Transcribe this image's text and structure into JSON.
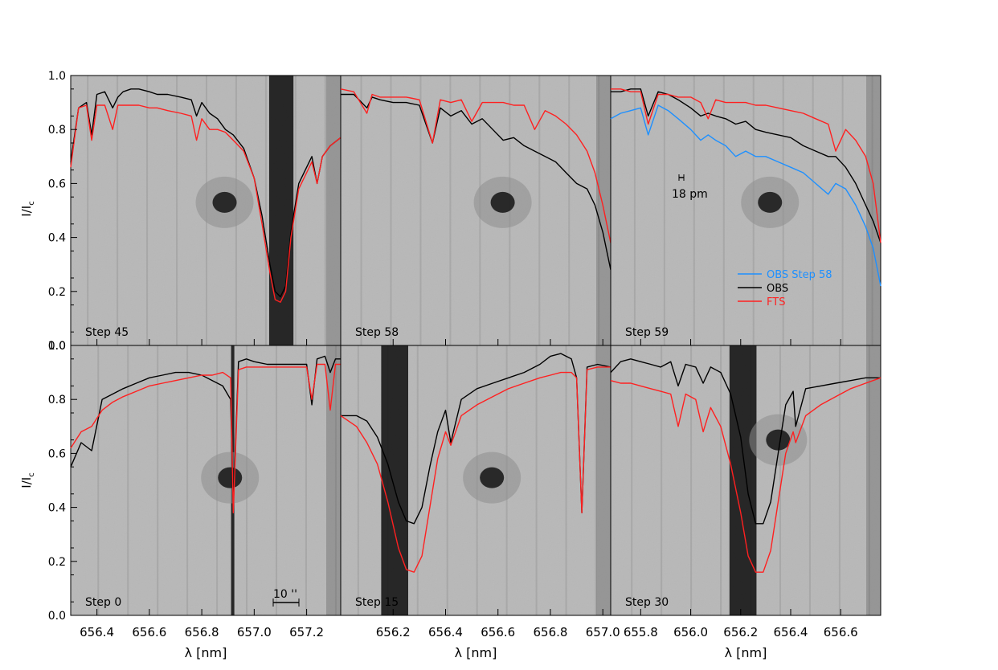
{
  "figure": {
    "ylabel": "I/I",
    "ylabel_sub": "c",
    "xlabel": "λ [nm]",
    "scalebar_label": "10 ''",
    "resolution_label": "18 pm",
    "colors": {
      "obs": "#000000",
      "fts": "#ff2020",
      "obs_alt": "#1e90ff",
      "background_image": "#b9b9b9"
    }
  },
  "chart_data": [
    {
      "type": "line",
      "panel_label": "Step 45",
      "xlim": [
        656.3,
        657.33
      ],
      "ylim": [
        0,
        1.0
      ],
      "xticks": [
        656.4,
        656.6,
        656.8,
        657.0,
        657.2
      ],
      "yticks": [
        0.0,
        0.2,
        0.4,
        0.6,
        0.8,
        1.0
      ],
      "series": [
        {
          "name": "OBS",
          "color": "#000000",
          "x": [
            656.3,
            656.33,
            656.36,
            656.38,
            656.4,
            656.43,
            656.46,
            656.48,
            656.5,
            656.53,
            656.56,
            656.6,
            656.63,
            656.67,
            656.72,
            656.76,
            656.78,
            656.8,
            656.83,
            656.86,
            656.89,
            656.92,
            656.96,
            657.0,
            657.03,
            657.06,
            657.08,
            657.1,
            657.12,
            657.14,
            657.17,
            657.2,
            657.22,
            657.24,
            657.26,
            657.29,
            657.33
          ],
          "y": [
            0.68,
            0.88,
            0.9,
            0.78,
            0.93,
            0.94,
            0.88,
            0.92,
            0.94,
            0.95,
            0.95,
            0.94,
            0.93,
            0.93,
            0.92,
            0.91,
            0.85,
            0.9,
            0.86,
            0.84,
            0.8,
            0.78,
            0.73,
            0.62,
            0.48,
            0.3,
            0.2,
            0.18,
            0.22,
            0.42,
            0.6,
            0.66,
            0.7,
            0.6,
            0.7,
            0.74,
            0.77
          ]
        },
        {
          "name": "FTS",
          "color": "#ff2020",
          "x": [
            656.3,
            656.33,
            656.36,
            656.38,
            656.4,
            656.43,
            656.46,
            656.48,
            656.5,
            656.53,
            656.56,
            656.6,
            656.63,
            656.67,
            656.72,
            656.76,
            656.78,
            656.8,
            656.83,
            656.86,
            656.89,
            656.92,
            656.96,
            657.0,
            657.03,
            657.06,
            657.08,
            657.1,
            657.12,
            657.14,
            657.17,
            657.2,
            657.22,
            657.24,
            657.26,
            657.29,
            657.33
          ],
          "y": [
            0.66,
            0.88,
            0.89,
            0.76,
            0.89,
            0.89,
            0.8,
            0.89,
            0.89,
            0.89,
            0.89,
            0.88,
            0.88,
            0.87,
            0.86,
            0.85,
            0.76,
            0.84,
            0.8,
            0.8,
            0.79,
            0.76,
            0.72,
            0.62,
            0.45,
            0.27,
            0.17,
            0.16,
            0.2,
            0.4,
            0.58,
            0.64,
            0.68,
            0.6,
            0.7,
            0.74,
            0.77
          ]
        }
      ]
    },
    {
      "type": "line",
      "panel_label": "Step 58",
      "xlim": [
        656.0,
        657.03
      ],
      "ylim": [
        0,
        1.0
      ],
      "xticks": [
        656.2,
        656.4,
        656.6,
        656.8,
        657.0
      ],
      "yticks": [
        0.0,
        0.2,
        0.4,
        0.6,
        0.8,
        1.0
      ],
      "series": [
        {
          "name": "OBS",
          "color": "#000000",
          "x": [
            656.0,
            656.05,
            656.1,
            656.12,
            656.15,
            656.2,
            656.25,
            656.3,
            656.35,
            656.38,
            656.42,
            656.46,
            656.5,
            656.54,
            656.58,
            656.62,
            656.66,
            656.7,
            656.74,
            656.78,
            656.82,
            656.86,
            656.9,
            656.94,
            656.97,
            657.0,
            657.03
          ],
          "y": [
            0.93,
            0.93,
            0.88,
            0.92,
            0.91,
            0.9,
            0.9,
            0.89,
            0.75,
            0.88,
            0.85,
            0.87,
            0.82,
            0.84,
            0.8,
            0.76,
            0.77,
            0.74,
            0.72,
            0.7,
            0.68,
            0.64,
            0.6,
            0.58,
            0.52,
            0.42,
            0.28
          ]
        },
        {
          "name": "FTS",
          "color": "#ff2020",
          "x": [
            656.0,
            656.05,
            656.1,
            656.12,
            656.15,
            656.2,
            656.25,
            656.3,
            656.35,
            656.38,
            656.42,
            656.46,
            656.5,
            656.54,
            656.58,
            656.62,
            656.66,
            656.7,
            656.74,
            656.78,
            656.82,
            656.86,
            656.9,
            656.94,
            656.97,
            657.0,
            657.03
          ],
          "y": [
            0.95,
            0.94,
            0.86,
            0.93,
            0.92,
            0.92,
            0.92,
            0.91,
            0.75,
            0.91,
            0.9,
            0.91,
            0.83,
            0.9,
            0.9,
            0.9,
            0.89,
            0.89,
            0.8,
            0.87,
            0.85,
            0.82,
            0.78,
            0.72,
            0.64,
            0.52,
            0.38
          ]
        }
      ]
    },
    {
      "type": "line",
      "panel_label": "Step 59",
      "xlim": [
        655.68,
        656.76
      ],
      "ylim": [
        0,
        1.0
      ],
      "xticks": [
        655.8,
        656.0,
        656.2,
        656.4,
        656.6
      ],
      "yticks": [
        0.0,
        0.2,
        0.4,
        0.6,
        0.8,
        1.0
      ],
      "legend": {
        "position": "bottom-right",
        "entries": [
          "OBS  Step 58",
          "OBS",
          "FTS"
        ]
      },
      "series": [
        {
          "name": "OBS  Step 58",
          "color": "#1e90ff",
          "x": [
            655.68,
            655.72,
            655.76,
            655.8,
            655.83,
            655.87,
            655.91,
            655.95,
            656.0,
            656.04,
            656.07,
            656.1,
            656.14,
            656.18,
            656.22,
            656.26,
            656.3,
            656.35,
            656.4,
            656.45,
            656.5,
            656.55,
            656.58,
            656.62,
            656.66,
            656.7,
            656.73,
            656.76
          ],
          "y": [
            0.84,
            0.86,
            0.87,
            0.88,
            0.78,
            0.89,
            0.87,
            0.84,
            0.8,
            0.76,
            0.78,
            0.76,
            0.74,
            0.7,
            0.72,
            0.7,
            0.7,
            0.68,
            0.66,
            0.64,
            0.6,
            0.56,
            0.6,
            0.58,
            0.52,
            0.44,
            0.36,
            0.22
          ]
        },
        {
          "name": "OBS",
          "color": "#000000",
          "x": [
            655.68,
            655.72,
            655.76,
            655.8,
            655.83,
            655.87,
            655.91,
            655.95,
            656.0,
            656.04,
            656.07,
            656.1,
            656.14,
            656.18,
            656.22,
            656.26,
            656.3,
            656.35,
            656.4,
            656.45,
            656.5,
            656.55,
            656.58,
            656.62,
            656.66,
            656.7,
            656.73,
            656.76
          ],
          "y": [
            0.94,
            0.94,
            0.95,
            0.95,
            0.85,
            0.94,
            0.93,
            0.91,
            0.88,
            0.85,
            0.86,
            0.85,
            0.84,
            0.82,
            0.83,
            0.8,
            0.79,
            0.78,
            0.77,
            0.74,
            0.72,
            0.7,
            0.7,
            0.66,
            0.6,
            0.52,
            0.46,
            0.38
          ]
        },
        {
          "name": "FTS",
          "color": "#ff2020",
          "x": [
            655.68,
            655.72,
            655.76,
            655.8,
            655.83,
            655.87,
            655.91,
            655.95,
            656.0,
            656.04,
            656.07,
            656.1,
            656.14,
            656.18,
            656.22,
            656.26,
            656.3,
            656.35,
            656.4,
            656.45,
            656.5,
            656.55,
            656.58,
            656.62,
            656.66,
            656.7,
            656.73,
            656.76
          ],
          "y": [
            0.95,
            0.95,
            0.94,
            0.94,
            0.82,
            0.93,
            0.93,
            0.92,
            0.92,
            0.9,
            0.84,
            0.91,
            0.9,
            0.9,
            0.9,
            0.89,
            0.89,
            0.88,
            0.87,
            0.86,
            0.84,
            0.82,
            0.72,
            0.8,
            0.76,
            0.7,
            0.6,
            0.38
          ]
        }
      ]
    },
    {
      "type": "line",
      "panel_label": "Step 0",
      "xlim": [
        656.3,
        657.33
      ],
      "ylim": [
        0,
        1.0
      ],
      "xticks": [
        656.4,
        656.6,
        656.8,
        657.0,
        657.2
      ],
      "yticks": [
        0.0,
        0.2,
        0.4,
        0.6,
        0.8,
        1.0
      ],
      "series": [
        {
          "name": "OBS",
          "color": "#000000",
          "x": [
            656.3,
            656.34,
            656.38,
            656.42,
            656.46,
            656.5,
            656.55,
            656.6,
            656.65,
            656.7,
            656.75,
            656.8,
            656.84,
            656.88,
            656.91,
            656.92,
            656.94,
            656.97,
            657.0,
            657.05,
            657.1,
            657.15,
            657.2,
            657.22,
            657.24,
            657.27,
            657.29,
            657.31,
            657.33
          ],
          "y": [
            0.55,
            0.64,
            0.61,
            0.8,
            0.82,
            0.84,
            0.86,
            0.88,
            0.89,
            0.9,
            0.9,
            0.89,
            0.87,
            0.85,
            0.8,
            0.4,
            0.94,
            0.95,
            0.94,
            0.93,
            0.93,
            0.93,
            0.93,
            0.78,
            0.95,
            0.96,
            0.9,
            0.95,
            0.95
          ]
        },
        {
          "name": "FTS",
          "color": "#ff2020",
          "x": [
            656.3,
            656.34,
            656.38,
            656.42,
            656.46,
            656.5,
            656.55,
            656.6,
            656.65,
            656.7,
            656.75,
            656.8,
            656.84,
            656.88,
            656.91,
            656.92,
            656.94,
            656.97,
            657.0,
            657.05,
            657.1,
            657.15,
            657.2,
            657.22,
            657.24,
            657.27,
            657.29,
            657.31,
            657.33
          ],
          "y": [
            0.62,
            0.68,
            0.7,
            0.76,
            0.79,
            0.81,
            0.83,
            0.85,
            0.86,
            0.87,
            0.88,
            0.89,
            0.89,
            0.9,
            0.88,
            0.38,
            0.91,
            0.92,
            0.92,
            0.92,
            0.92,
            0.92,
            0.92,
            0.8,
            0.93,
            0.93,
            0.76,
            0.93,
            0.93
          ]
        }
      ]
    },
    {
      "type": "line",
      "panel_label": "Step 15",
      "xlim": [
        656.0,
        657.03
      ],
      "ylim": [
        0,
        1.0
      ],
      "xticks": [
        656.2,
        656.4,
        656.6,
        656.8,
        657.0
      ],
      "yticks": [
        0.0,
        0.2,
        0.4,
        0.6,
        0.8,
        1.0
      ],
      "series": [
        {
          "name": "OBS",
          "color": "#000000",
          "x": [
            656.0,
            656.06,
            656.1,
            656.14,
            656.18,
            656.22,
            656.25,
            656.28,
            656.31,
            656.34,
            656.37,
            656.4,
            656.42,
            656.46,
            656.52,
            656.58,
            656.64,
            656.7,
            656.76,
            656.8,
            656.84,
            656.88,
            656.9,
            656.92,
            656.94,
            656.98,
            657.03
          ],
          "y": [
            0.74,
            0.74,
            0.72,
            0.66,
            0.56,
            0.42,
            0.35,
            0.34,
            0.4,
            0.55,
            0.68,
            0.76,
            0.64,
            0.8,
            0.84,
            0.86,
            0.88,
            0.9,
            0.93,
            0.96,
            0.97,
            0.95,
            0.88,
            0.38,
            0.92,
            0.93,
            0.92
          ]
        },
        {
          "name": "FTS",
          "color": "#ff2020",
          "x": [
            656.0,
            656.06,
            656.1,
            656.14,
            656.18,
            656.22,
            656.25,
            656.28,
            656.31,
            656.34,
            656.37,
            656.4,
            656.42,
            656.46,
            656.52,
            656.58,
            656.64,
            656.7,
            656.76,
            656.8,
            656.84,
            656.88,
            656.9,
            656.92,
            656.94,
            656.98,
            657.03
          ],
          "y": [
            0.74,
            0.7,
            0.64,
            0.56,
            0.42,
            0.25,
            0.17,
            0.16,
            0.22,
            0.4,
            0.58,
            0.68,
            0.63,
            0.74,
            0.78,
            0.81,
            0.84,
            0.86,
            0.88,
            0.89,
            0.9,
            0.9,
            0.88,
            0.38,
            0.91,
            0.92,
            0.92
          ]
        }
      ]
    },
    {
      "type": "line",
      "panel_label": "Step 30",
      "xlim": [
        655.68,
        656.76
      ],
      "ylim": [
        0,
        1.0
      ],
      "xticks": [
        655.8,
        656.0,
        656.2,
        656.4,
        656.6
      ],
      "yticks": [
        0.0,
        0.2,
        0.4,
        0.6,
        0.8,
        1.0
      ],
      "series": [
        {
          "name": "OBS",
          "color": "#000000",
          "x": [
            655.68,
            655.72,
            655.76,
            655.8,
            655.84,
            655.88,
            655.92,
            655.95,
            655.98,
            656.02,
            656.05,
            656.08,
            656.12,
            656.16,
            656.2,
            656.23,
            656.26,
            656.29,
            656.32,
            656.35,
            656.38,
            656.41,
            656.42,
            656.46,
            656.52,
            656.58,
            656.64,
            656.7,
            656.76
          ],
          "y": [
            0.9,
            0.94,
            0.95,
            0.94,
            0.93,
            0.92,
            0.94,
            0.85,
            0.93,
            0.92,
            0.86,
            0.92,
            0.9,
            0.82,
            0.66,
            0.45,
            0.34,
            0.34,
            0.42,
            0.6,
            0.78,
            0.83,
            0.7,
            0.84,
            0.85,
            0.86,
            0.87,
            0.88,
            0.88
          ]
        },
        {
          "name": "FTS",
          "color": "#ff2020",
          "x": [
            655.68,
            655.72,
            655.76,
            655.8,
            655.84,
            655.88,
            655.92,
            655.95,
            655.98,
            656.02,
            656.05,
            656.08,
            656.12,
            656.16,
            656.2,
            656.23,
            656.26,
            656.29,
            656.32,
            656.35,
            656.38,
            656.41,
            656.42,
            656.46,
            656.52,
            656.58,
            656.64,
            656.7,
            656.76
          ],
          "y": [
            0.87,
            0.86,
            0.86,
            0.85,
            0.84,
            0.83,
            0.82,
            0.7,
            0.82,
            0.8,
            0.68,
            0.77,
            0.7,
            0.56,
            0.38,
            0.22,
            0.16,
            0.16,
            0.24,
            0.42,
            0.6,
            0.68,
            0.64,
            0.74,
            0.78,
            0.81,
            0.84,
            0.86,
            0.88
          ]
        }
      ]
    }
  ]
}
